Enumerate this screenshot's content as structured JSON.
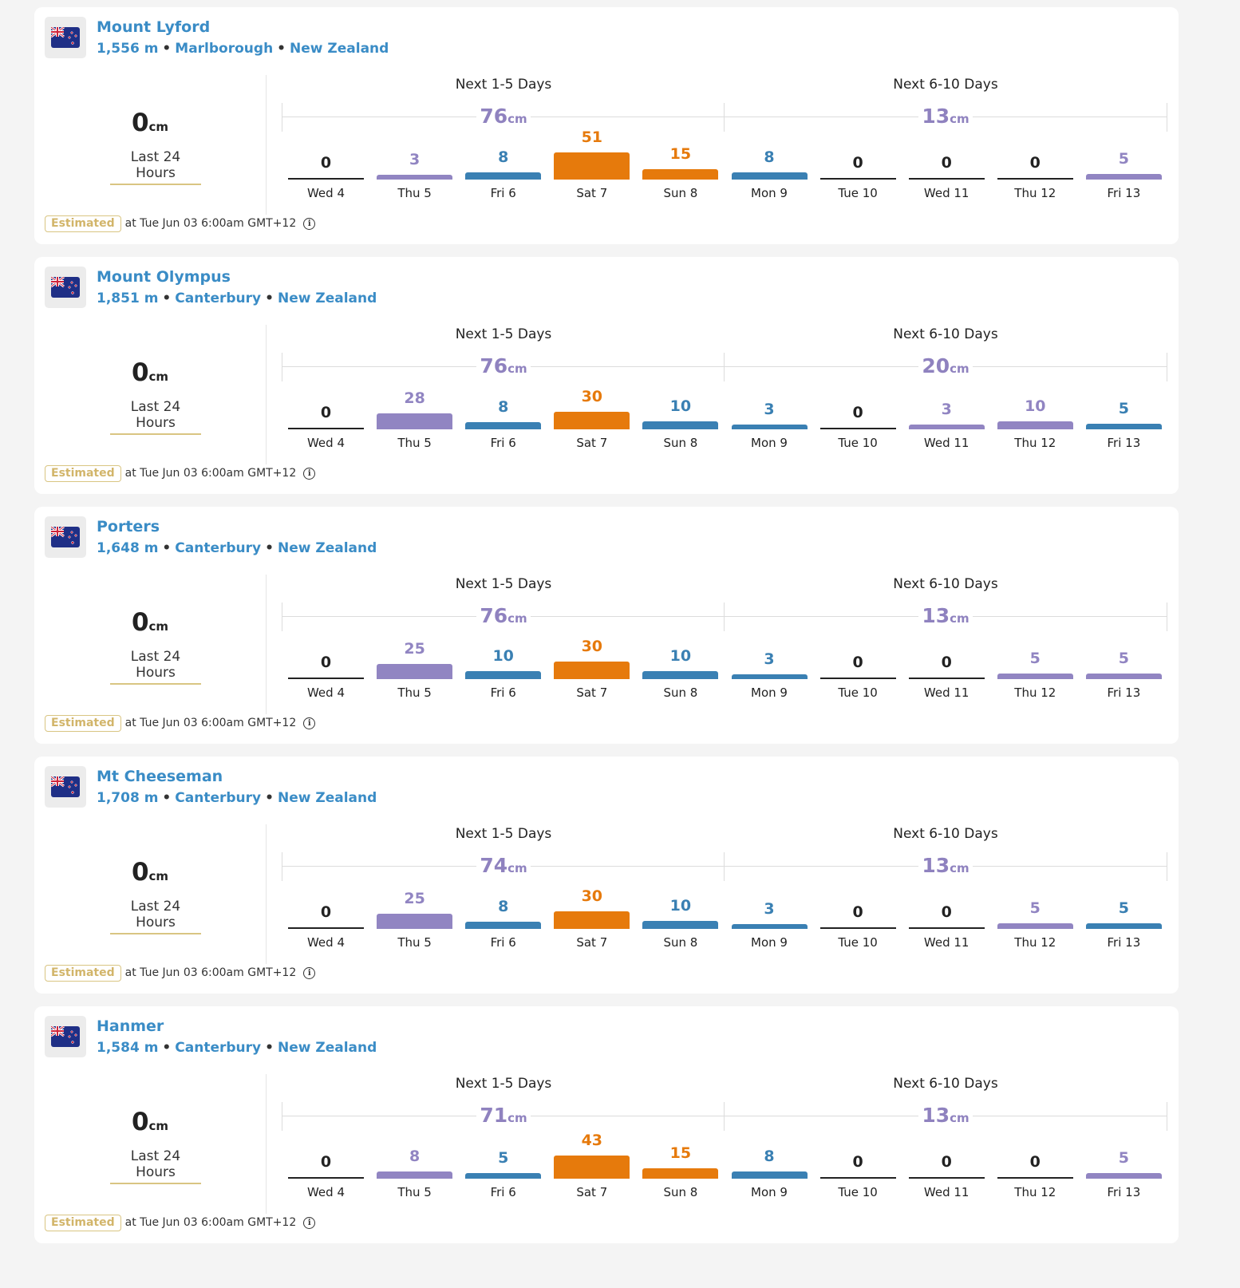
{
  "colors": {
    "link": "#3a8cc6",
    "purple": "#9185c2",
    "blue": "#3a80b3",
    "orange": "#e67a0c",
    "zero": "#222222",
    "total": "#8f82bf",
    "badge": "#d2b56a"
  },
  "common": {
    "unit": "cm",
    "last24_label": "Last 24 Hours",
    "period1_label": "Next 1-5 Days",
    "period2_label": "Next 6-10 Days",
    "estimated_label": "Estimated",
    "estimated_time": "at Tue Jun 03 6:00am GMT+12",
    "info_icon": "info-icon",
    "flag_icon": "new-zealand-flag-icon",
    "separator": "•"
  },
  "chart_data": [
    {
      "type": "bar",
      "title": "Mount Lyford",
      "elevation": "1,556 m",
      "region": "Marlborough",
      "country": "New Zealand",
      "last24": 0,
      "period1_total": 76,
      "period2_total": 13,
      "categories": [
        "Wed 4",
        "Thu 5",
        "Fri 6",
        "Sat 7",
        "Sun 8",
        "Mon 9",
        "Tue 10",
        "Wed 11",
        "Thu 12",
        "Fri 13"
      ],
      "values": [
        0,
        3,
        8,
        51,
        15,
        8,
        0,
        0,
        0,
        5
      ],
      "bar_colors": [
        "zero",
        "purple",
        "blue",
        "orange",
        "orange",
        "blue",
        "zero",
        "zero",
        "zero",
        "purple"
      ],
      "unit": "cm"
    },
    {
      "type": "bar",
      "title": "Mount Olympus",
      "elevation": "1,851 m",
      "region": "Canterbury",
      "country": "New Zealand",
      "last24": 0,
      "period1_total": 76,
      "period2_total": 20,
      "categories": [
        "Wed 4",
        "Thu 5",
        "Fri 6",
        "Sat 7",
        "Sun 8",
        "Mon 9",
        "Tue 10",
        "Wed 11",
        "Thu 12",
        "Fri 13"
      ],
      "values": [
        0,
        28,
        8,
        30,
        10,
        3,
        0,
        3,
        10,
        5
      ],
      "bar_colors": [
        "zero",
        "purple",
        "blue",
        "orange",
        "blue",
        "blue",
        "zero",
        "purple",
        "purple",
        "blue"
      ],
      "unit": "cm"
    },
    {
      "type": "bar",
      "title": "Porters",
      "elevation": "1,648 m",
      "region": "Canterbury",
      "country": "New Zealand",
      "last24": 0,
      "period1_total": 76,
      "period2_total": 13,
      "categories": [
        "Wed 4",
        "Thu 5",
        "Fri 6",
        "Sat 7",
        "Sun 8",
        "Mon 9",
        "Tue 10",
        "Wed 11",
        "Thu 12",
        "Fri 13"
      ],
      "values": [
        0,
        25,
        10,
        30,
        10,
        3,
        0,
        0,
        5,
        5
      ],
      "bar_colors": [
        "zero",
        "purple",
        "blue",
        "orange",
        "blue",
        "blue",
        "zero",
        "zero",
        "purple",
        "purple"
      ],
      "unit": "cm"
    },
    {
      "type": "bar",
      "title": "Mt Cheeseman",
      "elevation": "1,708 m",
      "region": "Canterbury",
      "country": "New Zealand",
      "last24": 0,
      "period1_total": 74,
      "period2_total": 13,
      "categories": [
        "Wed 4",
        "Thu 5",
        "Fri 6",
        "Sat 7",
        "Sun 8",
        "Mon 9",
        "Tue 10",
        "Wed 11",
        "Thu 12",
        "Fri 13"
      ],
      "values": [
        0,
        25,
        8,
        30,
        10,
        3,
        0,
        0,
        5,
        5
      ],
      "bar_colors": [
        "zero",
        "purple",
        "blue",
        "orange",
        "blue",
        "blue",
        "zero",
        "zero",
        "purple",
        "blue"
      ],
      "unit": "cm"
    },
    {
      "type": "bar",
      "title": "Hanmer",
      "elevation": "1,584 m",
      "region": "Canterbury",
      "country": "New Zealand",
      "last24": 0,
      "period1_total": 71,
      "period2_total": 13,
      "categories": [
        "Wed 4",
        "Thu 5",
        "Fri 6",
        "Sat 7",
        "Sun 8",
        "Mon 9",
        "Tue 10",
        "Wed 11",
        "Thu 12",
        "Fri 13"
      ],
      "values": [
        0,
        8,
        5,
        43,
        15,
        8,
        0,
        0,
        0,
        5
      ],
      "bar_colors": [
        "zero",
        "purple",
        "blue",
        "orange",
        "orange",
        "blue",
        "zero",
        "zero",
        "zero",
        "purple"
      ],
      "unit": "cm"
    }
  ]
}
